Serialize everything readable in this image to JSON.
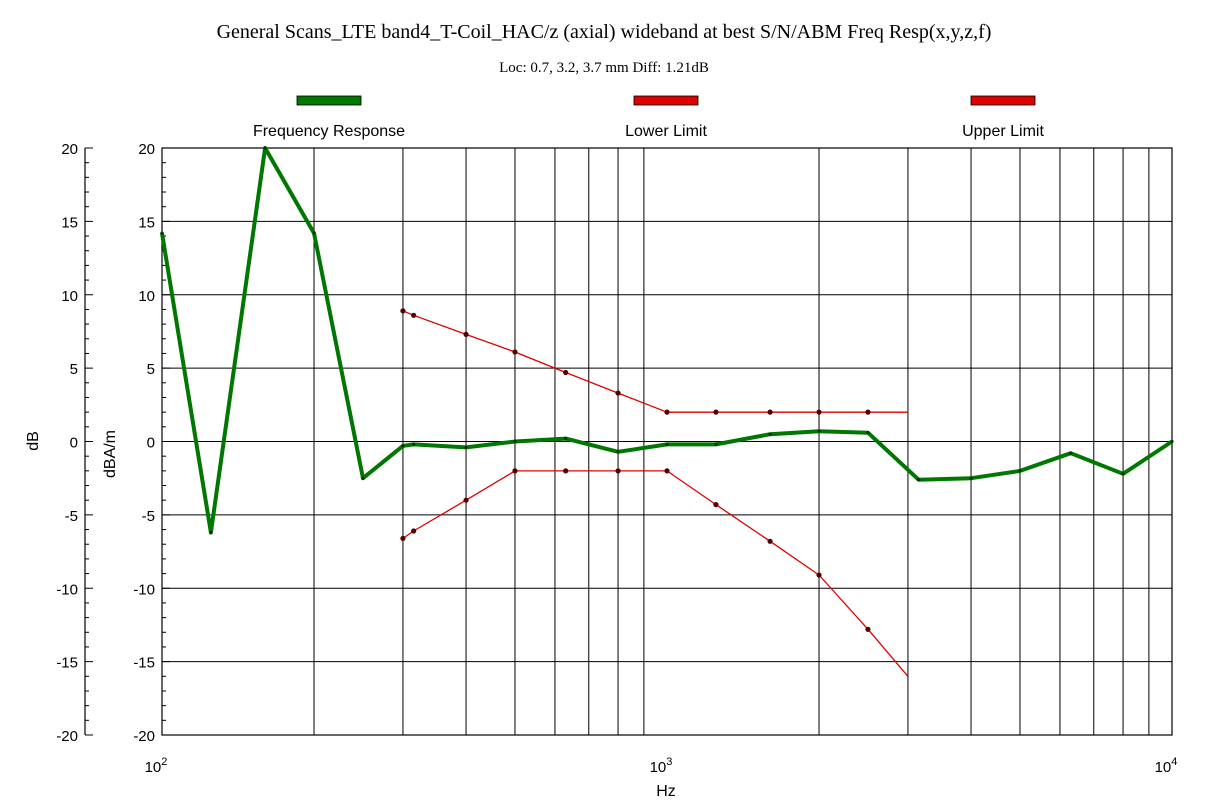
{
  "chart_data": {
    "type": "line",
    "title": "General Scans_LTE band4_T-Coil_HAC/z (axial) wideband at best S/N/ABM Freq Resp(x,y,z,f)",
    "subtitle": "Loc: 0.7, 3.2, 3.7 mm Diff: 1.21dB",
    "xlabel": "Hz",
    "ylabel_outer": "dB",
    "ylabel_inner": "dBA/m",
    "x_scale": "log",
    "xlim": [
      100,
      10000
    ],
    "ylim": [
      -20,
      20
    ],
    "x_tick_labels": [
      {
        "value": 100,
        "base": "10",
        "exp": "2"
      },
      {
        "value": 1000,
        "base": "10",
        "exp": "3"
      },
      {
        "value": 10000,
        "base": "10",
        "exp": "4"
      }
    ],
    "y_ticks": [
      20,
      15,
      10,
      5,
      0,
      -5,
      -10,
      -15,
      -20
    ],
    "y_tick_labels": [
      "20",
      "15",
      "10",
      "5",
      "0",
      "-5",
      "-10",
      "-15",
      "-20"
    ],
    "legend_placement": "top",
    "series": [
      {
        "name": "Frequency Response",
        "color": "#007700",
        "x": [
          100,
          125,
          160,
          200,
          250,
          300,
          315,
          400,
          500,
          630,
          800,
          1000,
          1250,
          1600,
          2000,
          2500,
          3150,
          4000,
          5000,
          6300,
          8000,
          10000
        ],
        "y": [
          14.2,
          -6.2,
          20.5,
          14.2,
          -2.5,
          -0.3,
          -0.2,
          -0.4,
          0.0,
          0.2,
          -0.7,
          -0.2,
          -0.2,
          0.5,
          0.7,
          0.6,
          -2.6,
          -2.5,
          -2.0,
          -0.8,
          -2.2,
          0.0
        ]
      },
      {
        "name": "Lower Limit",
        "color": "#dd0000",
        "x": [
          300,
          315,
          400,
          500,
          630,
          800,
          1000,
          1250,
          1600,
          2000,
          2500,
          3000
        ],
        "y": [
          -6.6,
          -6.1,
          -4.0,
          -2.0,
          -2.0,
          -2.0,
          -2.0,
          -4.3,
          -6.8,
          -9.1,
          -12.8,
          -16.0
        ]
      },
      {
        "name": "Upper Limit",
        "color": "#dd0000",
        "x": [
          300,
          315,
          400,
          500,
          630,
          800,
          1000,
          1250,
          1600,
          2000,
          2500,
          3000
        ],
        "y": [
          8.9,
          8.6,
          7.3,
          6.1,
          4.7,
          3.3,
          2.0,
          2.0,
          2.0,
          2.0,
          2.0,
          2.0
        ]
      }
    ]
  }
}
